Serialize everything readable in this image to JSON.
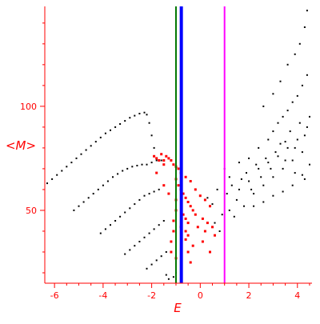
{
  "chart_data": {
    "type": "scatter",
    "title": "",
    "xlabel": "E",
    "ylabel": "<M>",
    "xlim": [
      -6.4,
      4.6
    ],
    "ylim": [
      15,
      148
    ],
    "x_ticks": [
      -6,
      -4,
      -2,
      0,
      2,
      4
    ],
    "y_ticks": [
      50,
      100
    ],
    "grid": false,
    "axis_color": "#ff0000",
    "vertical_lines": [
      {
        "x": -1.0,
        "color": "#007700"
      },
      {
        "x": -0.78,
        "color": "#0000ff"
      },
      {
        "x": 1.0,
        "color": "#ff00ff"
      }
    ],
    "series": [
      {
        "color": "#000000",
        "points": [
          [
            -6.3,
            63
          ],
          [
            -6.1,
            65
          ],
          [
            -5.9,
            67
          ],
          [
            -5.7,
            69
          ],
          [
            -5.5,
            71
          ],
          [
            -5.3,
            73
          ],
          [
            -5.1,
            75
          ],
          [
            -4.9,
            77
          ],
          [
            -4.7,
            79
          ],
          [
            -4.5,
            81
          ],
          [
            -4.3,
            83
          ],
          [
            -4.1,
            85
          ],
          [
            -3.9,
            87
          ],
          [
            -3.7,
            88.5
          ],
          [
            -3.5,
            90
          ],
          [
            -3.3,
            91.5
          ],
          [
            -3.1,
            93
          ],
          [
            -2.9,
            94.5
          ],
          [
            -2.7,
            95.5
          ],
          [
            -2.5,
            96.5
          ],
          [
            -2.3,
            97
          ],
          [
            -2.2,
            96
          ],
          [
            -2.1,
            92
          ],
          [
            -2.0,
            86
          ],
          [
            -1.9,
            80
          ],
          [
            -5.2,
            50
          ],
          [
            -5.0,
            52
          ],
          [
            -4.8,
            54
          ],
          [
            -4.6,
            56
          ],
          [
            -4.4,
            58
          ],
          [
            -4.2,
            60
          ],
          [
            -4.0,
            62
          ],
          [
            -3.8,
            64
          ],
          [
            -3.6,
            66
          ],
          [
            -3.4,
            67.5
          ],
          [
            -3.2,
            69
          ],
          [
            -3.0,
            70
          ],
          [
            -2.8,
            71
          ],
          [
            -2.6,
            71.5
          ],
          [
            -2.4,
            72
          ],
          [
            -2.2,
            72
          ],
          [
            -2.0,
            73
          ],
          [
            -1.8,
            74
          ],
          [
            -1.6,
            74
          ],
          [
            -4.1,
            39
          ],
          [
            -3.9,
            41
          ],
          [
            -3.7,
            43
          ],
          [
            -3.5,
            45
          ],
          [
            -3.3,
            47
          ],
          [
            -3.1,
            49
          ],
          [
            -2.9,
            51
          ],
          [
            -2.7,
            53
          ],
          [
            -2.5,
            55
          ],
          [
            -2.3,
            57
          ],
          [
            -2.1,
            58
          ],
          [
            -1.9,
            59
          ],
          [
            -1.7,
            60
          ],
          [
            -3.1,
            29
          ],
          [
            -2.9,
            31
          ],
          [
            -2.7,
            33
          ],
          [
            -2.5,
            35
          ],
          [
            -2.3,
            37
          ],
          [
            -2.1,
            39
          ],
          [
            -1.9,
            41
          ],
          [
            -1.7,
            43
          ],
          [
            -1.5,
            45
          ],
          [
            -2.2,
            22
          ],
          [
            -2.0,
            24
          ],
          [
            -1.8,
            26
          ],
          [
            -1.6,
            28
          ],
          [
            -1.4,
            30
          ],
          [
            -1.3,
            17
          ],
          [
            -1.1,
            18
          ],
          [
            -1.4,
            19
          ],
          [
            -1.0,
            20
          ],
          [
            0.3,
            56
          ],
          [
            0.5,
            53
          ],
          [
            0.7,
            60
          ],
          [
            0.9,
            48
          ],
          [
            1.1,
            58
          ],
          [
            1.3,
            62
          ],
          [
            1.5,
            55
          ],
          [
            1.7,
            65
          ],
          [
            1.9,
            68
          ],
          [
            2.1,
            60
          ],
          [
            2.3,
            72
          ],
          [
            2.5,
            66
          ],
          [
            2.7,
            75
          ],
          [
            2.9,
            70
          ],
          [
            3.1,
            78
          ],
          [
            3.3,
            82
          ],
          [
            3.5,
            74
          ],
          [
            3.7,
            88
          ],
          [
            3.9,
            80
          ],
          [
            4.1,
            92
          ],
          [
            4.3,
            86
          ],
          [
            4.5,
            95
          ],
          [
            0.6,
            44
          ],
          [
            0.8,
            40
          ],
          [
            1.2,
            50
          ],
          [
            1.4,
            47
          ],
          [
            1.6,
            60
          ],
          [
            1.8,
            52
          ],
          [
            2.0,
            64
          ],
          [
            2.2,
            58
          ],
          [
            2.4,
            70
          ],
          [
            2.6,
            62
          ],
          [
            2.8,
            73
          ],
          [
            3.0,
            66
          ],
          [
            3.2,
            76
          ],
          [
            3.4,
            70
          ],
          [
            3.6,
            80
          ],
          [
            3.8,
            74
          ],
          [
            4.0,
            84
          ],
          [
            4.2,
            78
          ],
          [
            4.4,
            90
          ],
          [
            1.0,
            70
          ],
          [
            1.2,
            66
          ],
          [
            1.6,
            73
          ],
          [
            2.0,
            75
          ],
          [
            2.4,
            80
          ],
          [
            2.8,
            84
          ],
          [
            3.0,
            88
          ],
          [
            3.2,
            92
          ],
          [
            3.4,
            95
          ],
          [
            3.6,
            98
          ],
          [
            3.8,
            102
          ],
          [
            4.0,
            105
          ],
          [
            4.2,
            110
          ],
          [
            4.4,
            115
          ],
          [
            2.6,
            100
          ],
          [
            3.0,
            106
          ],
          [
            3.3,
            112
          ],
          [
            3.6,
            120
          ],
          [
            3.9,
            125
          ],
          [
            4.1,
            130
          ],
          [
            4.3,
            138
          ],
          [
            4.4,
            146
          ],
          [
            3.5,
            83
          ],
          [
            3.9,
            68
          ],
          [
            4.3,
            65
          ],
          [
            4.5,
            72
          ],
          [
            2.2,
            52
          ],
          [
            2.6,
            54
          ],
          [
            3.0,
            57
          ],
          [
            3.4,
            59
          ],
          [
            3.8,
            62
          ],
          [
            4.2,
            67
          ]
        ]
      },
      {
        "color": "#ff0000",
        "points": [
          [
            -1.9,
            76
          ],
          [
            -1.8,
            75
          ],
          [
            -1.6,
            77
          ],
          [
            -1.5,
            74
          ],
          [
            -1.4,
            76
          ],
          [
            -1.3,
            75
          ],
          [
            -1.2,
            74
          ],
          [
            -1.1,
            72
          ],
          [
            -1.0,
            71
          ],
          [
            -0.9,
            70
          ],
          [
            -1.5,
            72
          ],
          [
            -1.7,
            74
          ],
          [
            -1.0,
            65
          ],
          [
            -0.9,
            62
          ],
          [
            -0.8,
            60
          ],
          [
            -0.7,
            58
          ],
          [
            -0.6,
            56
          ],
          [
            -0.5,
            54
          ],
          [
            -0.4,
            52
          ],
          [
            -0.3,
            50
          ],
          [
            -0.7,
            48
          ],
          [
            -0.6,
            46
          ],
          [
            -0.5,
            44
          ],
          [
            -0.8,
            42
          ],
          [
            -0.6,
            40
          ],
          [
            -0.5,
            38
          ],
          [
            -0.6,
            36
          ],
          [
            -1.0,
            55
          ],
          [
            -1.0,
            50
          ],
          [
            -1.1,
            45
          ],
          [
            -1.1,
            40
          ],
          [
            -1.2,
            35
          ],
          [
            -1.2,
            30
          ],
          [
            -1.0,
            27
          ],
          [
            -0.4,
            64
          ],
          [
            -0.2,
            60
          ],
          [
            0.0,
            57
          ],
          [
            0.2,
            55
          ],
          [
            0.4,
            52
          ],
          [
            -0.2,
            48
          ],
          [
            0.1,
            46
          ],
          [
            0.3,
            44
          ],
          [
            -0.1,
            42
          ],
          [
            0.2,
            40
          ],
          [
            0.5,
            42
          ],
          [
            0.6,
            38
          ],
          [
            -0.5,
            30
          ],
          [
            -0.4,
            25
          ],
          [
            -0.3,
            33
          ],
          [
            0.1,
            35
          ],
          [
            0.4,
            30
          ],
          [
            -1.5,
            62
          ],
          [
            -1.8,
            68
          ],
          [
            -1.3,
            58
          ],
          [
            -0.8,
            68
          ],
          [
            -0.6,
            66
          ]
        ]
      }
    ]
  }
}
